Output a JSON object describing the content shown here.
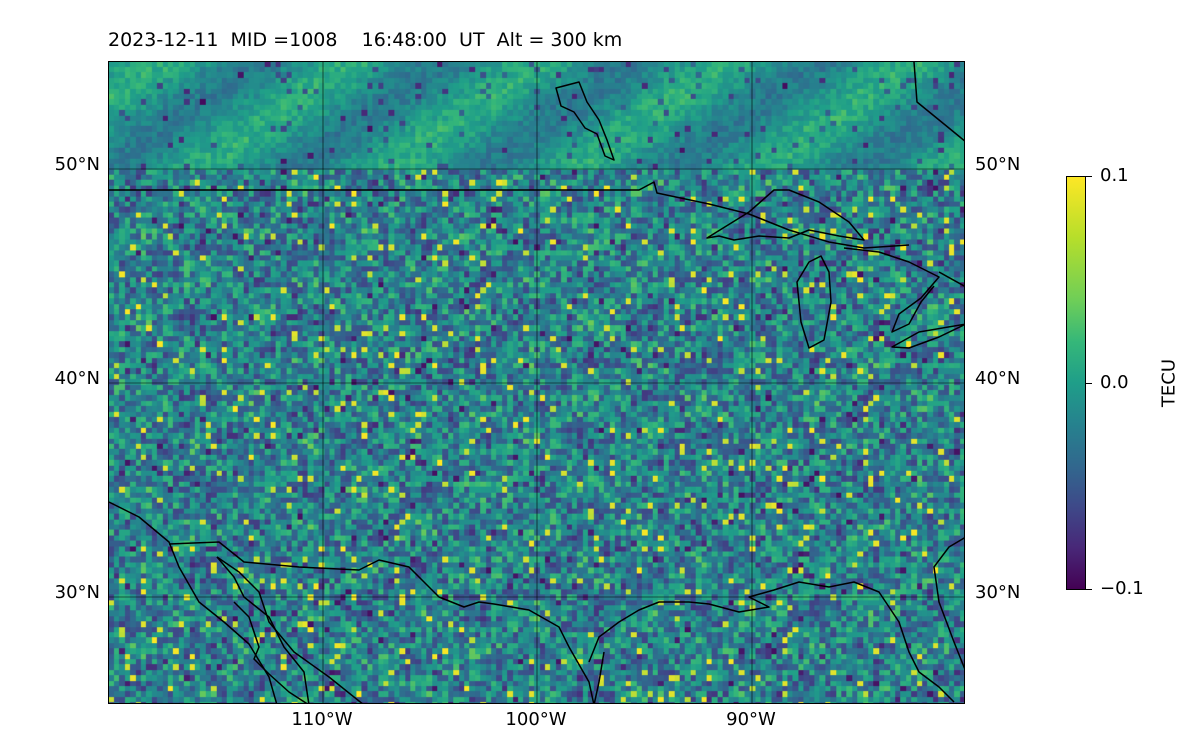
{
  "title": {
    "date": "2023-12-11",
    "mid": "MID =1008",
    "time": "16:48:00  UT",
    "alt": "Alt = 300 km"
  },
  "map": {
    "lon_range": [
      -120,
      -80
    ],
    "lat_range": [
      25,
      55
    ],
    "lat_ticks": [
      {
        "value": 50,
        "label": "50°N"
      },
      {
        "value": 40,
        "label": "40°N"
      },
      {
        "value": 30,
        "label": "30°N"
      }
    ],
    "lon_ticks": [
      {
        "value": -110,
        "label": "110°W"
      },
      {
        "value": -100,
        "label": "100°W"
      },
      {
        "value": -90,
        "label": "90°W"
      }
    ],
    "gridlines": true,
    "colormap": "viridis"
  },
  "colorbar": {
    "label": "TECU",
    "min": -0.1,
    "max": 0.1,
    "ticks": [
      {
        "value": 0.1,
        "label": "0.1"
      },
      {
        "value": 0.0,
        "label": "0.0"
      },
      {
        "value": -0.1,
        "label": "−0.1"
      }
    ]
  }
}
